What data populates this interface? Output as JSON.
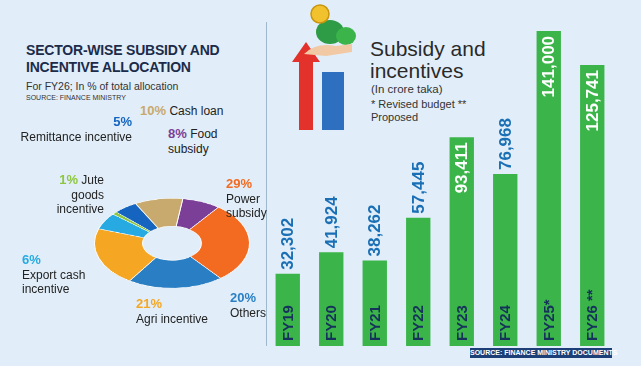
{
  "chart_data": [
    {
      "type": "doughnut",
      "title": "SECTOR-WISE SUBSIDY AND INCENTIVE ALLOCATION",
      "subtitle": "For FY26; In % of total allocation",
      "source": "SOURCE: FINANCE MINISTRY",
      "categories": [
        "Food subsidy",
        "Power subsidy",
        "Others",
        "Agri incentive",
        "Export cash incentive",
        "Jute goods incentive",
        "Remittance incentive",
        "Cash loan"
      ],
      "values": [
        8,
        29,
        20,
        21,
        6,
        1,
        5,
        10
      ],
      "value_labels": [
        "8%",
        "29%",
        "20%",
        "21%",
        "6%",
        "1%",
        "5%",
        "10%"
      ],
      "colors": [
        "#7b3f98",
        "#f26b21",
        "#2a7fc4",
        "#f5a623",
        "#27aae1",
        "#8dc63f",
        "#1565c0",
        "#c8a96e"
      ],
      "data_labels": true
    },
    {
      "type": "bar",
      "title": "Subsidy and incentives",
      "subtitle": "(In crore taka)",
      "annotations": [
        "* Revised budget ** Proposed"
      ],
      "source": "SOURCE: FINANCE MINISTRY DOCUMENTS",
      "categories": [
        "FY19",
        "FY20",
        "FY21",
        "FY22",
        "FY23",
        "FY24",
        "FY25*",
        "FY26 **"
      ],
      "values": [
        32302,
        41924,
        38262,
        57445,
        93411,
        76968,
        141000,
        125741
      ],
      "value_labels": [
        "32,302",
        "41,924",
        "38,262",
        "57,445",
        "93,411",
        "76,968",
        "141,000",
        "125,741"
      ],
      "color": "#3bb44a",
      "ylim": [
        0,
        145000
      ],
      "yticks": [],
      "grid": false,
      "tick_labels": false,
      "data_labels": true
    }
  ]
}
